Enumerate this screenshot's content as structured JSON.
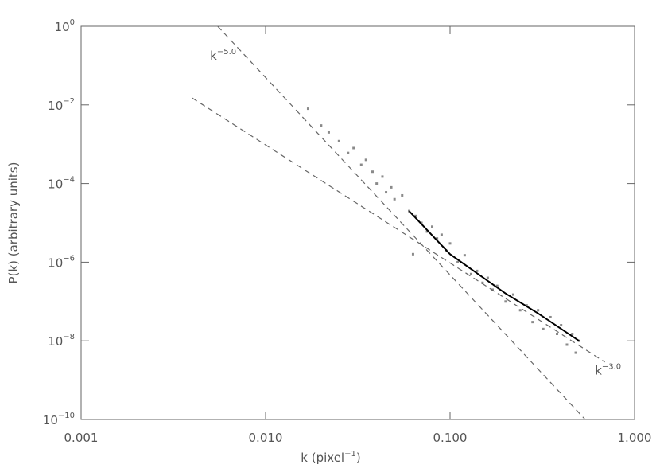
{
  "chart_data": {
    "type": "scatter",
    "xlabel": {
      "text": "k (pixel",
      "exponent": "−1",
      "suffix": ")"
    },
    "ylabel": "P(k) (arbitrary units)",
    "xscale": "log",
    "yscale": "log",
    "xlim": [
      0.001,
      1.0
    ],
    "ylim": [
      1e-10,
      1
    ],
    "xticks": [
      {
        "value": 0.001,
        "label": "0.001"
      },
      {
        "value": 0.01,
        "label": "0.010"
      },
      {
        "value": 0.1,
        "label": "0.100"
      },
      {
        "value": 1,
        "label": "1.000"
      }
    ],
    "yticks": [
      {
        "value": 1e-10,
        "label": "10",
        "exponent": "−10"
      },
      {
        "value": 1e-08,
        "label": "10",
        "exponent": "−8"
      },
      {
        "value": 1e-06,
        "label": "10",
        "exponent": "−6"
      },
      {
        "value": 0.0001,
        "label": "10",
        "exponent": "−4"
      },
      {
        "value": 0.01,
        "label": "10",
        "exponent": "−2"
      },
      {
        "value": 1,
        "label": "10",
        "exponent": "0"
      }
    ],
    "points": {
      "color": "#8a8a8a",
      "x": [
        0.017,
        0.02,
        0.022,
        0.025,
        0.028,
        0.03,
        0.033,
        0.035,
        0.038,
        0.04,
        0.043,
        0.045,
        0.048,
        0.05,
        0.055,
        0.06,
        0.065,
        0.07,
        0.075,
        0.08,
        0.085,
        0.09,
        0.095,
        0.1,
        0.11,
        0.12,
        0.13,
        0.14,
        0.15,
        0.16,
        0.17,
        0.18,
        0.2,
        0.22,
        0.24,
        0.26,
        0.28,
        0.3,
        0.32,
        0.35,
        0.38,
        0.4,
        0.43,
        0.46,
        0.48,
        0.5,
        0.063
      ],
      "y": [
        0.008,
        0.003,
        0.002,
        0.0012,
        0.0006,
        0.0008,
        0.0003,
        0.0004,
        0.0002,
        0.0001,
        0.00015,
        6e-05,
        8e-05,
        4e-05,
        5e-05,
        2e-05,
        1.5e-05,
        1e-05,
        6e-06,
        8e-06,
        4e-06,
        5e-06,
        2e-06,
        3e-06,
        1e-06,
        1.5e-06,
        5e-07,
        6e-07,
        3e-07,
        4e-07,
        2e-07,
        2.5e-07,
        1e-07,
        1.5e-07,
        6e-08,
        8e-08,
        3e-08,
        6e-08,
        2e-08,
        4e-08,
        1.5e-08,
        2.5e-08,
        8e-09,
        1.5e-08,
        5e-09,
        1e-08,
        1.6e-06
      ]
    },
    "lines": [
      {
        "style": "solid",
        "color": "#000000",
        "x": [
          0.06,
          0.1,
          0.2,
          0.3,
          0.5
        ],
        "y": [
          2e-05,
          1.6e-06,
          1.6e-07,
          5e-08,
          1e-08
        ]
      },
      {
        "style": "dashed",
        "color": "#666666",
        "x": [
          0.0055,
          0.54
        ],
        "y": [
          1,
          1e-10
        ]
      },
      {
        "style": "dashed",
        "color": "#666666",
        "x": [
          0.004,
          0.69
        ],
        "y": [
          0.015,
          2.9e-09
        ]
      }
    ],
    "annotations": [
      {
        "text": "k",
        "exponent": "−5.0",
        "x": 0.005,
        "y": 0.14
      },
      {
        "text": "k",
        "exponent": "−3.0",
        "x": 0.61,
        "y": 1.4e-09
      }
    ]
  }
}
